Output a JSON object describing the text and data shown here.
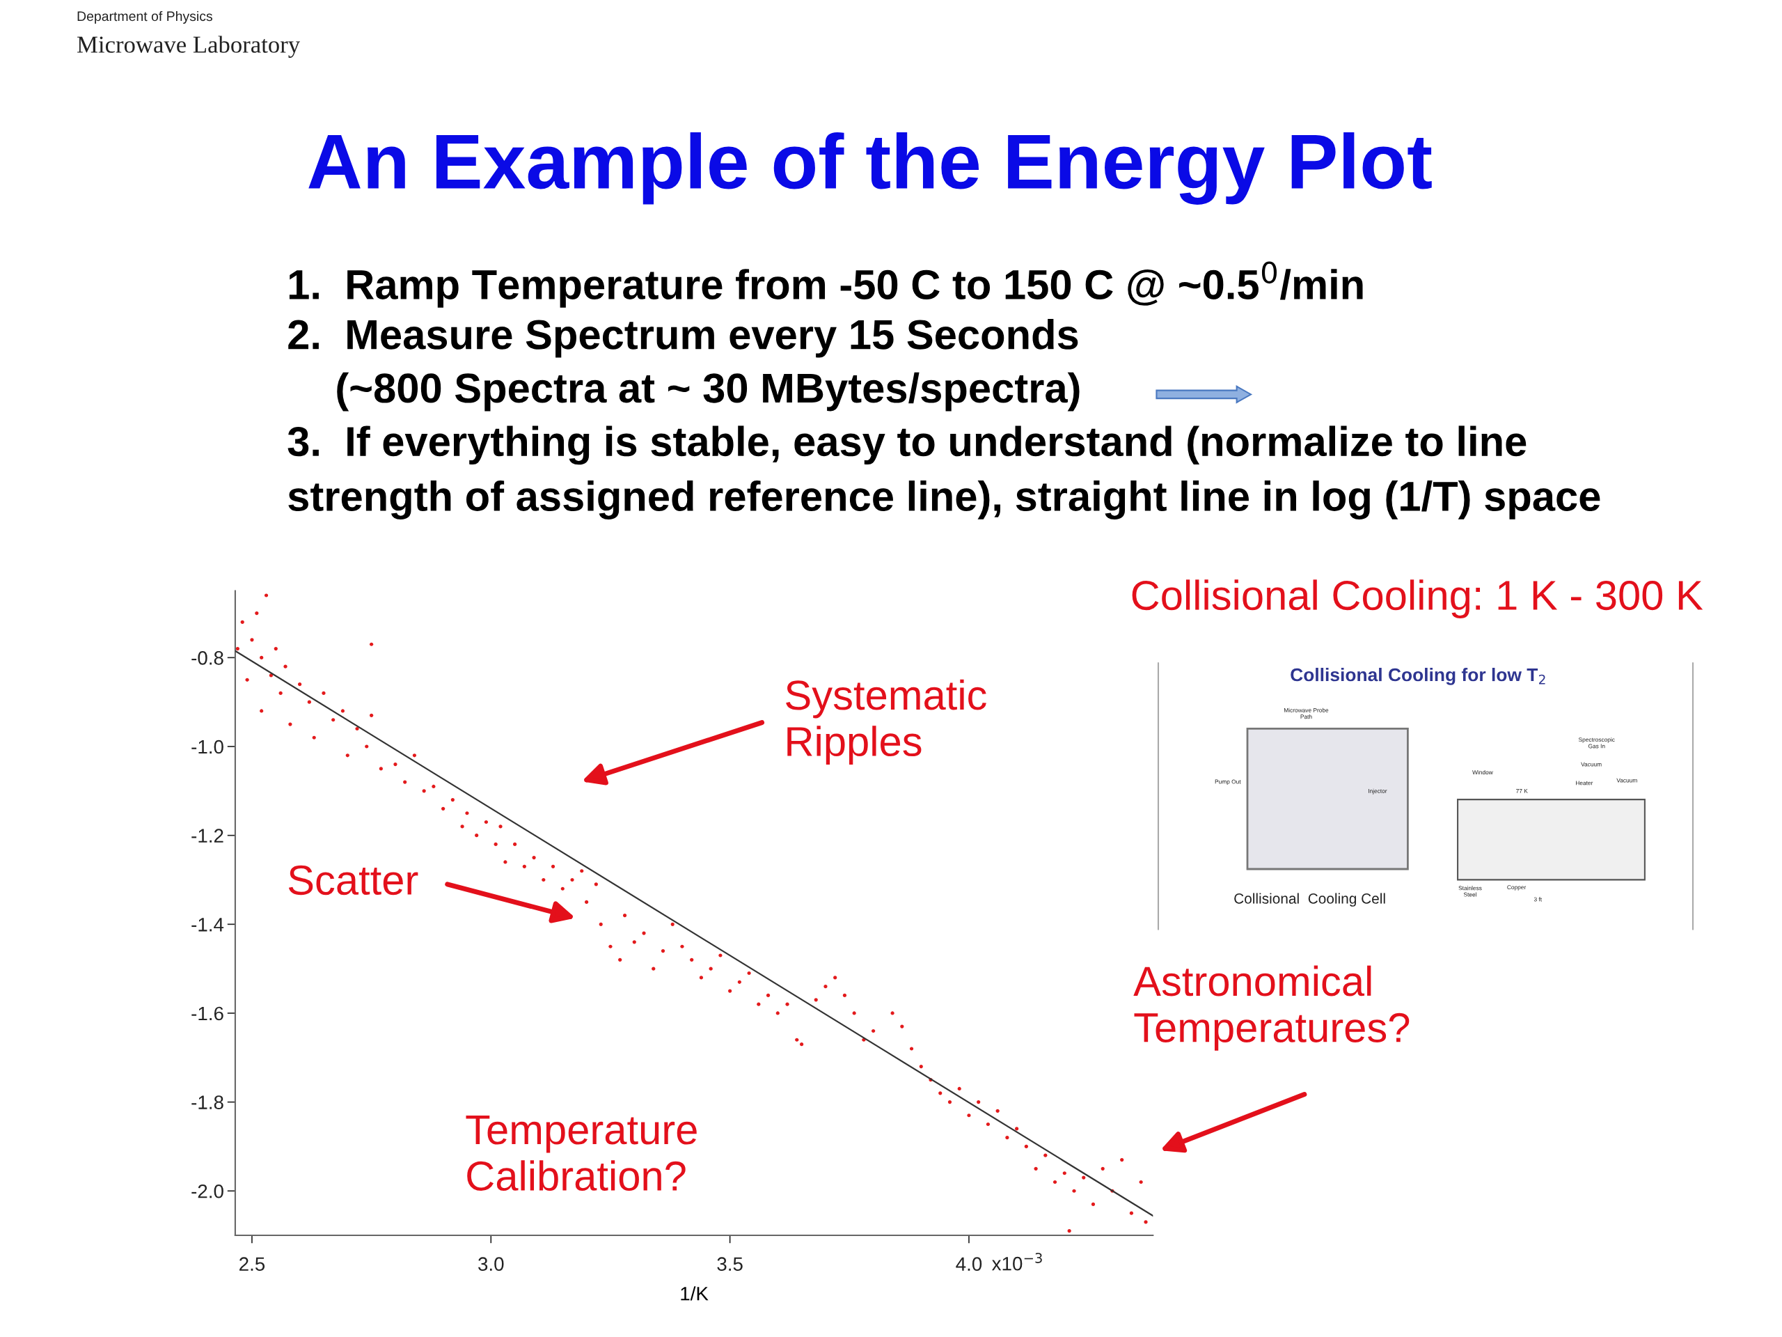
{
  "chart_data": {
    "type": "scatter",
    "title": "An Example of the Energy Plot",
    "xlabel": "1/K",
    "xlim": [
      2.465,
      4.385
    ],
    "ylim": [
      -2.1,
      -0.65
    ],
    "xticks": [
      2.5,
      {
        "value": 3.0,
        "label": "3.0"
      },
      3.5,
      {
        "value": 4.0,
        "label": "4.0"
      }
    ],
    "yticks": [
      {
        "value": -0.8,
        "label": "-0.8"
      },
      {
        "value": -1.0,
        "label": "-1.0"
      },
      {
        "value": -1.2,
        "label": "-1.2"
      },
      {
        "value": -1.4,
        "label": "-1.4"
      },
      {
        "value": -1.6,
        "label": "-1.6"
      },
      {
        "value": -1.8,
        "label": "-1.8"
      },
      {
        "value": -2.0,
        "label": "-2.0"
      }
    ],
    "grid": false,
    "legend": false,
    "series": [
      {
        "color": "#e31a1c",
        "marker": "circle",
        "x": [
          2.47,
          2.48,
          2.49,
          2.5,
          2.51,
          2.52,
          2.52,
          2.53,
          2.54,
          2.55,
          2.56,
          2.57,
          2.58,
          2.6,
          2.62,
          2.63,
          2.65,
          2.67,
          2.69,
          2.7,
          2.72,
          2.74,
          2.75,
          2.75,
          2.77,
          2.8,
          2.82,
          2.84,
          2.86,
          2.88,
          2.9,
          2.92,
          2.94,
          2.95,
          2.97,
          2.99,
          3.01,
          3.02,
          3.03,
          3.05,
          3.07,
          3.09,
          3.11,
          3.13,
          3.15,
          3.17,
          3.19,
          3.2,
          3.22,
          3.23,
          3.25,
          3.27,
          3.28,
          3.3,
          3.32,
          3.34,
          3.36,
          3.38,
          3.4,
          3.42,
          3.44,
          3.46,
          3.48,
          3.5,
          3.52,
          3.54,
          3.56,
          3.58,
          3.6,
          3.62,
          3.64,
          3.65,
          3.68,
          3.7,
          3.72,
          3.74,
          3.76,
          3.78,
          3.8,
          3.84,
          3.86,
          3.88,
          3.9,
          3.92,
          3.94,
          3.96,
          3.98,
          4.0,
          4.02,
          4.04,
          4.06,
          4.08,
          4.1,
          4.12,
          4.14,
          4.16,
          4.18,
          4.2,
          4.21,
          4.22,
          4.24,
          4.26,
          4.28,
          4.3,
          4.32,
          4.34,
          4.36,
          4.37
        ],
        "values": [
          -0.78,
          -0.72,
          -0.85,
          -0.76,
          -0.7,
          -0.8,
          -0.92,
          -0.66,
          -0.84,
          -0.78,
          -0.88,
          -0.82,
          -0.95,
          -0.86,
          -0.9,
          -0.98,
          -0.88,
          -0.94,
          -0.92,
          -1.02,
          -0.96,
          -1.0,
          -0.93,
          -0.77,
          -1.05,
          -1.04,
          -1.08,
          -1.02,
          -1.1,
          -1.09,
          -1.14,
          -1.12,
          -1.18,
          -1.15,
          -1.2,
          -1.17,
          -1.22,
          -1.18,
          -1.26,
          -1.22,
          -1.27,
          -1.25,
          -1.3,
          -1.27,
          -1.32,
          -1.3,
          -1.28,
          -1.35,
          -1.31,
          -1.4,
          -1.45,
          -1.48,
          -1.38,
          -1.44,
          -1.42,
          -1.5,
          -1.46,
          -1.4,
          -1.45,
          -1.48,
          -1.52,
          -1.5,
          -1.47,
          -1.55,
          -1.53,
          -1.51,
          -1.58,
          -1.56,
          -1.6,
          -1.58,
          -1.66,
          -1.67,
          -1.57,
          -1.54,
          -1.52,
          -1.56,
          -1.6,
          -1.66,
          -1.64,
          -1.6,
          -1.63,
          -1.68,
          -1.72,
          -1.75,
          -1.78,
          -1.8,
          -1.77,
          -1.83,
          -1.8,
          -1.85,
          -1.82,
          -1.88,
          -1.86,
          -1.9,
          -1.95,
          -1.92,
          -1.98,
          -1.96,
          -2.09,
          -2.0,
          -1.97,
          -2.03,
          -1.95,
          -2.0,
          -1.93,
          -2.05,
          -1.98,
          -2.07
        ]
      },
      {
        "type": "line",
        "color": "#333333",
        "marker": "none",
        "line_style": "solid",
        "x": [
          2.465,
          4.385
        ],
        "values": [
          -0.785,
          -2.056
        ]
      }
    ],
    "annotations": [
      "Department of Physics",
      "Microwave Laboratory",
      "1.  Ramp Temperature from -50 C to 150 C @ ~0.5$^{0}$/min",
      "2.  Measure Spectrum every 15 Seconds",
      "(~800 Spectra at ~ 30 MBytes/spectra)",
      "3.  If everything is stable, easy to understand (normalize to line",
      "strength of assigned reference line), straight line in log (1/T) space",
      "Collisional Cooling: 1 K - 300 K",
      "Systematic\nRipples",
      "Scatter",
      "Temperature\nCalibration?",
      "Astronomical\nTemperatures?",
      "Collisional Cooling for low T$_{2}$",
      "Collisional  Cooling Cell",
      "Microwave Probe\nPath",
      "Pump Out",
      "Injector",
      "Window",
      "77 K",
      "Heater",
      "Vacuum",
      "Spectroscopic\nGas In",
      "Vacuum",
      "Stainless\nSteel",
      "Copper",
      "3 ft",
      "x10$^{−3}$"
    ]
  }
}
